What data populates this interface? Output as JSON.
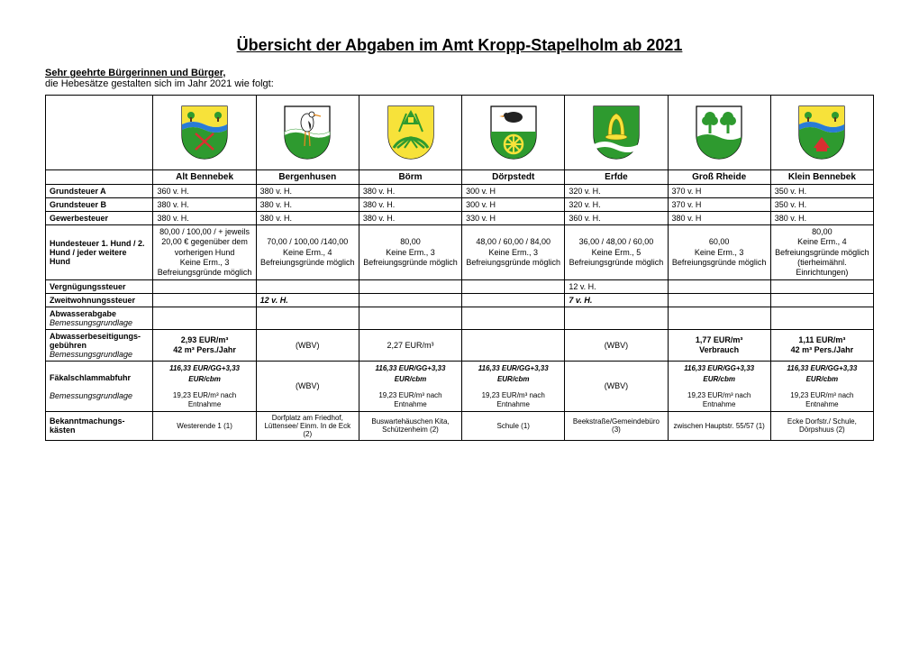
{
  "title": "Übersicht der Abgaben im Amt Kropp-Stapelholm ab 2021",
  "intro_bold": "Sehr geehrte Bürgerinnen und Bürger,",
  "intro_line": "die Hebesätze gestalten sich im Jahr 2021 wie folgt:",
  "towns": [
    "Alt Bennebek",
    "Bergenhusen",
    "Börm",
    "Dörpstedt",
    "Erfde",
    "Groß Rheide",
    "Klein Bennebek"
  ],
  "crest_colors": {
    "shield_border": "#000000",
    "green": "#2e9a2f",
    "yellow": "#f7e23a",
    "blue": "#2a7bd6",
    "white": "#ffffff",
    "red": "#d93030",
    "orange": "#e58a1f",
    "black": "#222222"
  },
  "rows": {
    "grundsteuer_a": {
      "label": "Grundsteuer A",
      "values": [
        "360 v. H.",
        "380 v. H.",
        "380 v. H.",
        "300 v. H",
        "320 v. H.",
        "370 v. H",
        "350 v. H."
      ]
    },
    "grundsteuer_b": {
      "label": "Grundsteuer B",
      "values": [
        "380 v. H.",
        "380 v. H.",
        "380 v. H.",
        "300 v. H",
        "320 v. H.",
        "370 v. H",
        "350 v. H."
      ]
    },
    "gewerbesteuer": {
      "label": "Gewerbesteuer",
      "values": [
        "380 v. H.",
        "380 v. H.",
        "380 v. H.",
        "330 v. H",
        "360 v. H.",
        "380 v. H",
        "380 v. H."
      ]
    },
    "hundesteuer": {
      "label": "Hundesteuer 1. Hund / 2. Hund / jeder weitere Hund",
      "values": [
        "80,00 / 100,00 / + jeweils 20,00 € gegenüber dem vorherigen Hund\nKeine Erm., 3\nBefreiungsgründe möglich",
        "70,00 / 100,00 /140,00\nKeine Erm., 4\nBefreiungsgründe möglich",
        "80,00\nKeine Erm., 3\nBefreiungsgründe möglich",
        "48,00 / 60,00 / 84,00\nKeine Erm., 3\nBefreiungsgründe möglich",
        "36,00 / 48,00 / 60,00\nKeine Erm., 5\nBefreiungsgründe möglich",
        "60,00\nKeine Erm., 3\nBefreiungsgründe möglich",
        "80,00\nKeine Erm., 4\nBefreiungsgründe möglich (tierheimähnl. Einrichtungen)"
      ]
    },
    "vergnuegung": {
      "label": "Vergnügungssteuer",
      "values": [
        "",
        "",
        "",
        "",
        "12 v. H.",
        "",
        ""
      ]
    },
    "zweitwohnung": {
      "label": "Zweitwohnungssteuer",
      "values": [
        "",
        "12 v. H.",
        "",
        "",
        "7 v. H.",
        "",
        ""
      ],
      "italic_bold": true
    },
    "abwasserabgabe": {
      "label": "Abwasserabgabe",
      "sublabel": "Bemessungsgrundlage",
      "values": [
        "",
        "",
        "",
        "",
        "",
        "",
        ""
      ]
    },
    "abwasserbeseitigung": {
      "label": "Abwasserbeseitigungs-gebühren",
      "sublabel": "Bemessungsgrundlage",
      "values": [
        "2,93 EUR/m³\n42 m³ Pers./Jahr",
        "(WBV)",
        "2,27 EUR/m³",
        "",
        "(WBV)",
        "1,77 EUR/m³\nVerbrauch",
        "1,11 EUR/m³\n42 m³ Pers./Jahr"
      ],
      "bold_cells": [
        0,
        5,
        6
      ]
    },
    "faekalschlamm": {
      "label": "Fäkalschlammabfuhr",
      "sublabel": "Bemessungsgrundlage",
      "line1": [
        "116,33 EUR/GG+3,33 EUR/cbm",
        "(WBV)",
        "116,33 EUR/GG+3,33 EUR/cbm",
        "116,33 EUR/GG+3,33 EUR/cbm",
        "(WBV)",
        "116,33 EUR/GG+3,33 EUR/cbm",
        "116,33 EUR/GG+3,33 EUR/cbm"
      ],
      "line2": [
        "19,23 EUR/m³ nach Entnahme",
        "",
        "19,23 EUR/m³ nach Entnahme",
        "19,23 EUR/m³ nach Entnahme",
        "",
        "19,23 EUR/m³ nach Entnahme",
        "19,23 EUR/m³ nach Entnahme"
      ]
    },
    "bekanntmachung": {
      "label": "Bekanntmachungs-kästen",
      "values": [
        "Westerende 1 (1)",
        "Dorfplatz am Friedhof, Lüttensee/ Einm. In de Eck (2)",
        "Buswartehäuschen Kita, Schützenheim (2)",
        "Schule (1)",
        "Beekstraße/Gemeindebüro (3)",
        "zwischen Hauptstr. 55/57 (1)",
        "Ecke Dorfstr./ Schule, Dörpshuus (2)"
      ]
    }
  }
}
